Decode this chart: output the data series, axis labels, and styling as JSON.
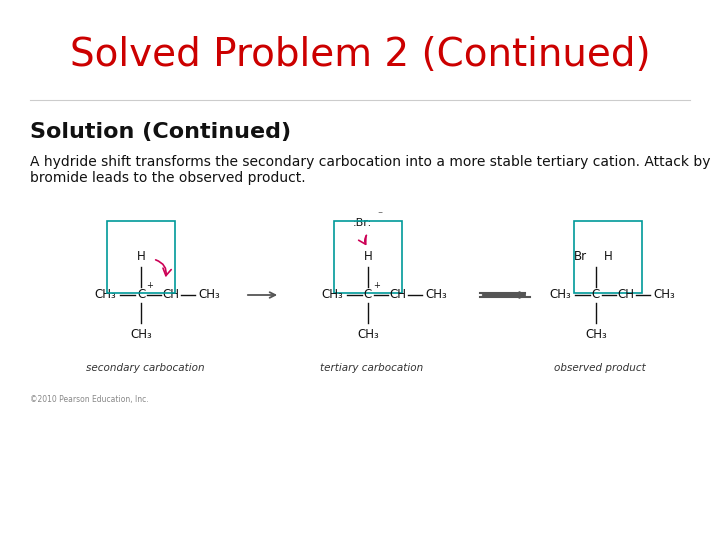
{
  "title": "Solved Problem 2 (Continued)",
  "title_color": "#cc0000",
  "title_fontsize": 28,
  "subtitle": "Solution (Continued)",
  "subtitle_fontsize": 16,
  "body_text": "A hydride shift transforms the secondary carbocation into a more stable tertiary cation. Attack by\nbromide leads to the observed product.",
  "body_fontsize": 10,
  "background_color": "#ffffff",
  "label1": "secondary carbocation",
  "label2": "tertiary carbocation",
  "label3": "observed product",
  "copyright": "©2010 Pearson Education, Inc.",
  "text_color": "#111111",
  "label_color": "#333333",
  "line_color": "#888888",
  "box_color": "#009999",
  "arrow_color": "#cc0055",
  "struct_color": "#111111"
}
